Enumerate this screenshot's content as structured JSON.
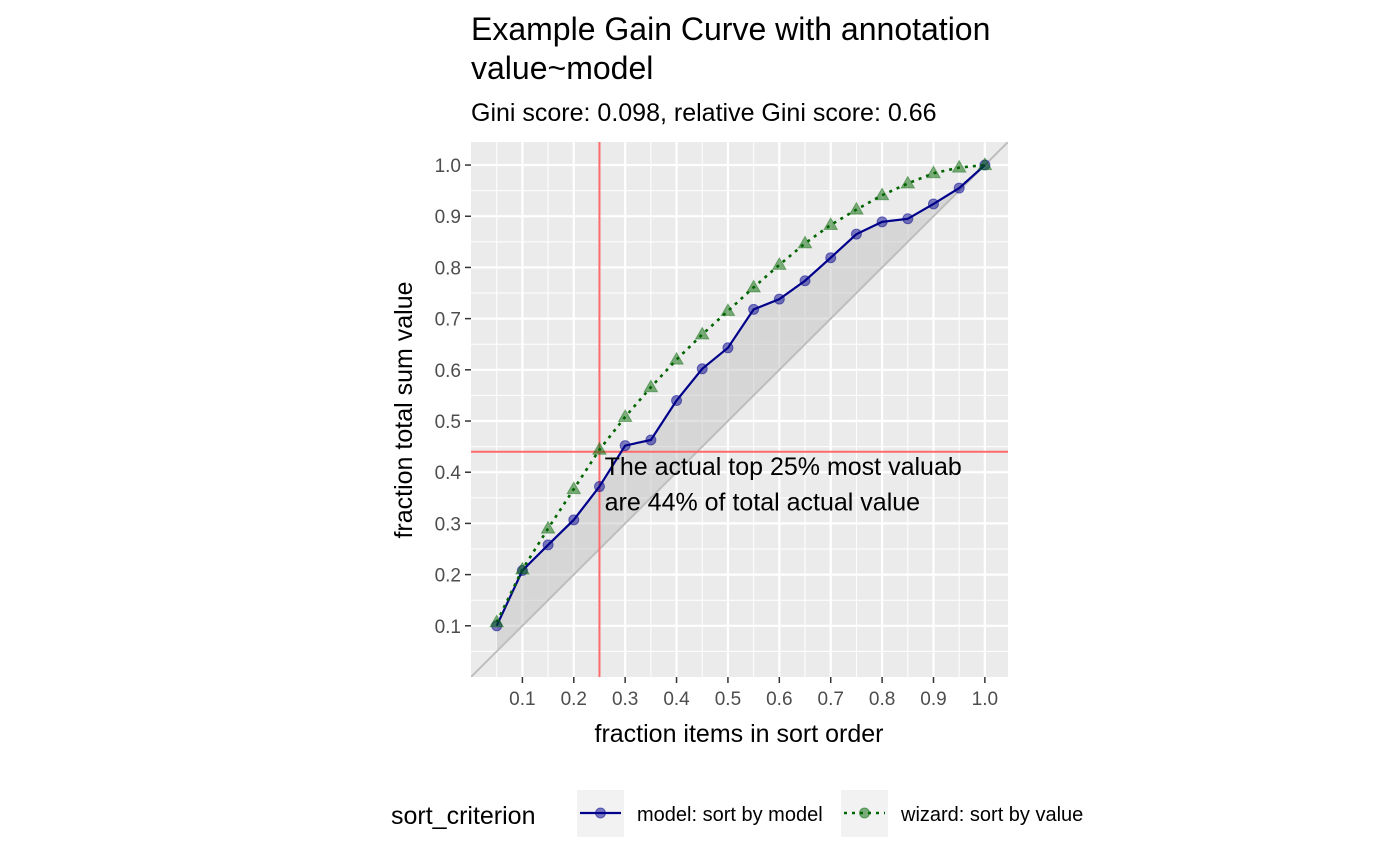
{
  "chart_data": {
    "type": "line",
    "title_line1": "Example Gain Curve with annotation",
    "title_line2": "value~model",
    "subtitle": "Gini score: 0.098, relative Gini score: 0.66",
    "xlabel": "fraction items in sort order",
    "ylabel": "fraction total sum value",
    "xlim": [
      0.0,
      1.045
    ],
    "ylim": [
      0.0,
      1.045
    ],
    "x_ticks": [
      0.1,
      0.2,
      0.3,
      0.4,
      0.5,
      0.6,
      0.7,
      0.8,
      0.9,
      1.0
    ],
    "x_tick_labels": [
      "0.1",
      "0.2",
      "0.3",
      "0.4",
      "0.5",
      "0.6",
      "0.7",
      "0.8",
      "0.9",
      "1.0"
    ],
    "y_ticks": [
      0.1,
      0.2,
      0.3,
      0.4,
      0.5,
      0.6,
      0.7,
      0.8,
      0.9,
      1.0
    ],
    "y_tick_labels": [
      "0.1",
      "0.2",
      "0.3",
      "0.4",
      "0.5",
      "0.6",
      "0.7",
      "0.8",
      "0.9",
      "1.0"
    ],
    "grid": true,
    "background_color": "#ebebeb",
    "x": [
      0.05,
      0.1,
      0.15,
      0.2,
      0.25,
      0.3,
      0.35,
      0.4,
      0.45,
      0.5,
      0.55,
      0.6,
      0.65,
      0.7,
      0.75,
      0.8,
      0.85,
      0.9,
      0.95,
      1.0
    ],
    "series": [
      {
        "name": "model: sort by model",
        "color": "#00008b",
        "marker": "circle",
        "line_style": "solid",
        "values": [
          0.1,
          0.208,
          0.258,
          0.307,
          0.372,
          0.452,
          0.463,
          0.54,
          0.602,
          0.643,
          0.718,
          0.738,
          0.774,
          0.819,
          0.865,
          0.889,
          0.895,
          0.924,
          0.955,
          1.0
        ]
      },
      {
        "name": "wizard: sort by value",
        "color": "#006400",
        "marker": "triangle",
        "line_style": "dotted",
        "values": [
          0.107,
          0.21,
          0.29,
          0.367,
          0.444,
          0.508,
          0.566,
          0.62,
          0.669,
          0.715,
          0.761,
          0.805,
          0.847,
          0.883,
          0.913,
          0.941,
          0.964,
          0.984,
          0.995,
          1.0
        ]
      }
    ],
    "diagonal": {
      "from": [
        0.0,
        0.0
      ],
      "to": [
        1.045,
        1.045
      ],
      "color": "#bebebe"
    },
    "reference_lines": {
      "x": 0.25,
      "y": 0.44,
      "color": "#ff6b6b"
    },
    "annotation": {
      "line1": "The actual top 25% most valuab",
      "line2": "are 44% of total actual value",
      "x": 0.26,
      "y1": 0.395,
      "y2": 0.325
    },
    "legend": {
      "title": "sort_criterion",
      "position": "bottom",
      "entries": [
        "model: sort by model",
        "wizard: sort by value"
      ]
    }
  }
}
